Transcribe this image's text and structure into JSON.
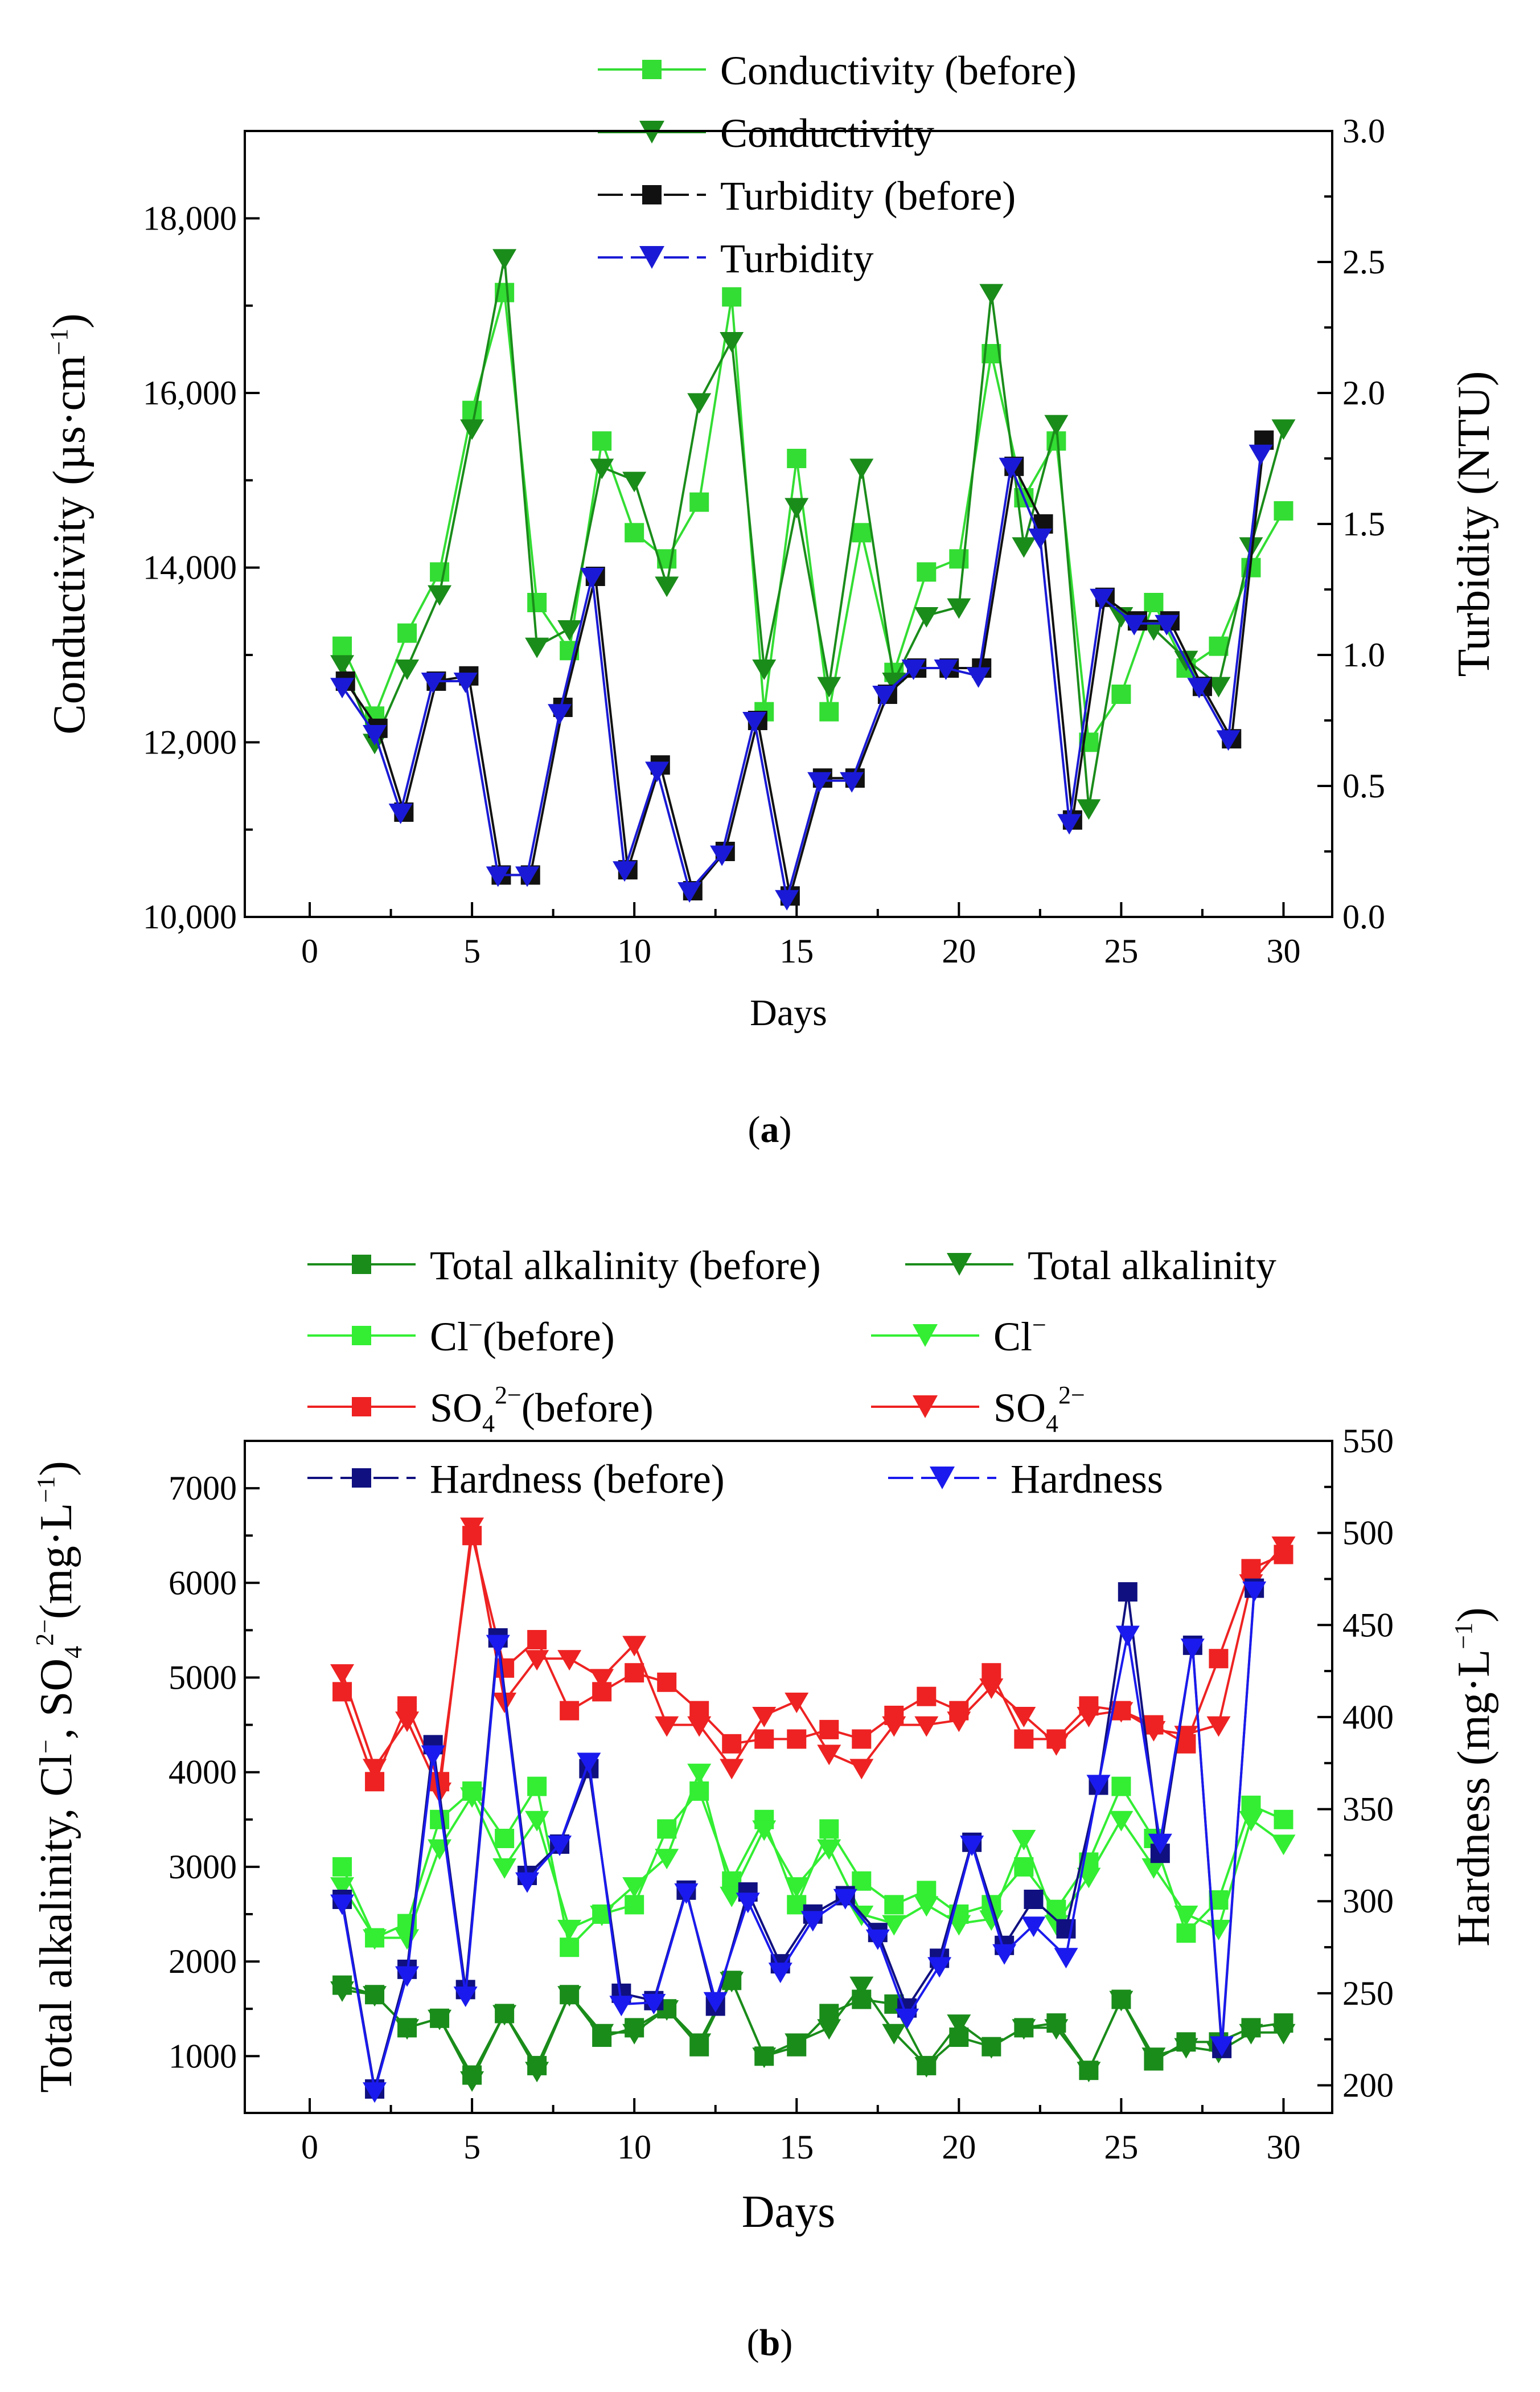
{
  "chart_data": [
    {
      "type": "line",
      "panel_label": "a",
      "xlabel": "Days",
      "xlim": [
        -2,
        31.5
      ],
      "xticks": [
        0,
        5,
        10,
        15,
        20,
        25,
        30
      ],
      "y_left": {
        "label": "Conductivity (µs·cm⁻¹)",
        "label_main": "Conductivity (µs·cm",
        "label_sup": "−1",
        "label_close": ")",
        "lim": [
          10000,
          19000
        ],
        "ticks": [
          10000,
          12000,
          14000,
          16000,
          18000
        ],
        "tick_labels": [
          "10,000",
          "12,000",
          "14,000",
          "16,000",
          "18,000"
        ]
      },
      "y_right": {
        "label": "Turbidity (NTU)",
        "lim": [
          0,
          3.0
        ],
        "ticks": [
          0,
          0.5,
          1.0,
          1.5,
          2.0,
          2.5,
          3.0
        ],
        "tick_labels": [
          "0.0",
          "0.5",
          "1.0",
          "1.5",
          "2.0",
          "2.5",
          "3.0"
        ]
      },
      "series": [
        {
          "name": "Conductivity (before)",
          "axis": "left",
          "color": "#33dd33",
          "marker": "square",
          "x": [
            1,
            2,
            3,
            4,
            5,
            6,
            7,
            8,
            9,
            10,
            11,
            12,
            13,
            14,
            15,
            16,
            17,
            18,
            19,
            20,
            21,
            22,
            23,
            24,
            25,
            26,
            27,
            28,
            29,
            30
          ],
          "values": [
            13100,
            12300,
            13250,
            13950,
            15800,
            17150,
            13600,
            13050,
            15450,
            14400,
            14100,
            14750,
            17100,
            12350,
            15250,
            12350,
            14400,
            12800,
            13950,
            14100,
            16450,
            14800,
            15450,
            12000,
            12550,
            13600,
            12850,
            13100,
            14000,
            14650
          ]
        },
        {
          "name": "Conductivity",
          "axis": "left",
          "color": "#1a8c1a",
          "marker": "triangle-down",
          "x": [
            1,
            2,
            3,
            4,
            5,
            6,
            7,
            8,
            9,
            10,
            11,
            12,
            13,
            14,
            15,
            16,
            17,
            18,
            19,
            20,
            21,
            22,
            23,
            24,
            25,
            26,
            27,
            28,
            29,
            30
          ],
          "values": [
            12900,
            12000,
            12850,
            13700,
            15600,
            17550,
            13100,
            13300,
            15150,
            15000,
            13800,
            15900,
            16600,
            12850,
            14700,
            12650,
            15150,
            12700,
            13450,
            13550,
            17150,
            14250,
            15650,
            11250,
            13450,
            13300,
            12950,
            12650,
            14250,
            15600
          ]
        },
        {
          "name": "Turbidity (before)",
          "axis": "right",
          "color": "#111111",
          "marker": "square",
          "x": [
            1.1,
            2.1,
            2.9,
            3.9,
            4.9,
            5.9,
            6.8,
            7.8,
            8.8,
            9.8,
            10.8,
            11.8,
            12.8,
            13.8,
            14.8,
            15.8,
            16.8,
            17.8,
            18.7,
            19.7,
            20.7,
            21.7,
            22.6,
            23.5,
            24.5,
            25.5,
            26.5,
            27.5,
            28.4,
            29.4
          ],
          "values": [
            0.9,
            0.72,
            0.4,
            0.9,
            0.92,
            0.16,
            0.16,
            0.8,
            1.3,
            0.18,
            0.58,
            0.1,
            0.25,
            0.75,
            0.08,
            0.53,
            0.53,
            0.85,
            0.95,
            0.95,
            0.95,
            1.72,
            1.5,
            0.37,
            1.22,
            1.13,
            1.13,
            0.88,
            0.68,
            1.82
          ]
        },
        {
          "name": "Turbidity",
          "axis": "right",
          "color": "#1a1ad6",
          "marker": "triangle-down",
          "x": [
            1.0,
            2.0,
            2.8,
            3.8,
            4.8,
            5.8,
            6.7,
            7.7,
            8.7,
            9.7,
            10.7,
            11.7,
            12.7,
            13.7,
            14.7,
            15.7,
            16.7,
            17.7,
            18.6,
            19.6,
            20.6,
            21.6,
            22.5,
            23.4,
            24.4,
            25.4,
            26.4,
            27.4,
            28.3,
            29.3
          ],
          "values": [
            0.88,
            0.7,
            0.4,
            0.9,
            0.9,
            0.16,
            0.16,
            0.78,
            1.3,
            0.18,
            0.56,
            0.1,
            0.24,
            0.75,
            0.07,
            0.52,
            0.52,
            0.85,
            0.95,
            0.95,
            0.92,
            1.72,
            1.45,
            0.36,
            1.22,
            1.12,
            1.12,
            0.88,
            0.68,
            1.77
          ]
        }
      ]
    },
    {
      "type": "line",
      "panel_label": "b",
      "xlabel": "Days",
      "xlim": [
        -2,
        31.5
      ],
      "xticks": [
        0,
        5,
        10,
        15,
        20,
        25,
        30
      ],
      "y_left": {
        "label": "Total alkalinity, Cl⁻, SO₄²⁻(mg·L⁻¹)",
        "label_a": "Total alkalinity, Cl",
        "label_b": ", SO",
        "label_c": "(mg·L",
        "label_d": ")",
        "sup_minus": "−",
        "sub_4": "4",
        "sup_2minus": "2−",
        "sup_m1": "−1",
        "lim": [
          400,
          7500
        ],
        "ticks": [
          1000,
          2000,
          3000,
          4000,
          5000,
          6000,
          7000
        ],
        "tick_labels": [
          "1000",
          "2000",
          "3000",
          "4000",
          "5000",
          "6000",
          "7000"
        ]
      },
      "y_right": {
        "label": "Hardness (mg·L⁻¹)",
        "label_a": "Hardness (mg·L",
        "label_sup": "−1",
        "label_close": ")",
        "lim": [
          185,
          550
        ],
        "ticks": [
          200,
          250,
          300,
          350,
          400,
          450,
          500,
          550
        ],
        "tick_labels": [
          "200",
          "250",
          "300",
          "350",
          "400",
          "450",
          "500",
          "550"
        ]
      },
      "series": [
        {
          "name": "Total alkalinity (before)",
          "axis": "left",
          "color": "#1a8c1a",
          "marker": "square",
          "x": [
            1,
            2,
            3,
            4,
            5,
            6,
            7,
            8,
            9,
            10,
            11,
            12,
            13,
            14,
            15,
            16,
            17,
            18,
            19,
            20,
            21,
            22,
            23,
            24,
            25,
            26,
            27,
            28,
            29,
            30
          ],
          "values": [
            1750,
            1650,
            1300,
            1400,
            800,
            1450,
            900,
            1650,
            1200,
            1300,
            1500,
            1100,
            1800,
            1000,
            1100,
            1450,
            1600,
            1550,
            900,
            1200,
            1100,
            1300,
            1350,
            850,
            1600,
            950,
            1150,
            1150,
            1300,
            1350
          ]
        },
        {
          "name": "Total alkalinity",
          "axis": "left",
          "color": "#1a8c1a",
          "marker": "triangle-down",
          "x": [
            1,
            2,
            3,
            4,
            5,
            6,
            7,
            8,
            9,
            10,
            11,
            12,
            13,
            14,
            15,
            16,
            17,
            18,
            19,
            20,
            21,
            22,
            23,
            24,
            25,
            26,
            27,
            28,
            29,
            30
          ],
          "values": [
            1700,
            1650,
            1300,
            1400,
            750,
            1450,
            850,
            1650,
            1250,
            1250,
            1500,
            1150,
            1800,
            1000,
            1150,
            1300,
            1750,
            1250,
            900,
            1350,
            1100,
            1300,
            1300,
            850,
            1600,
            1000,
            1100,
            1050,
            1250,
            1250
          ]
        },
        {
          "name": "Cl⁻(before)",
          "label_main": "Cl",
          "label_sup": "−",
          "label_tail": "(before)",
          "axis": "left",
          "color": "#33ee33",
          "marker": "square",
          "x": [
            1,
            2,
            3,
            4,
            5,
            6,
            7,
            8,
            9,
            10,
            11,
            12,
            13,
            14,
            15,
            16,
            17,
            18,
            19,
            20,
            21,
            22,
            23,
            24,
            25,
            26,
            27,
            28,
            29,
            30
          ],
          "values": [
            3000,
            2250,
            2400,
            3500,
            3800,
            3300,
            3850,
            2150,
            2500,
            2600,
            3400,
            3800,
            2850,
            3500,
            2600,
            3400,
            2850,
            2600,
            2750,
            2500,
            2600,
            3000,
            2550,
            3050,
            3850,
            3300,
            2300,
            2650,
            3650,
            3500
          ]
        },
        {
          "name": "Cl⁻",
          "label_main": "Cl",
          "label_sup": "−",
          "label_tail": "",
          "axis": "left",
          "color": "#33ee33",
          "marker": "triangle-down",
          "x": [
            1,
            2,
            3,
            4,
            5,
            6,
            7,
            8,
            9,
            10,
            11,
            12,
            13,
            14,
            15,
            16,
            17,
            18,
            19,
            20,
            21,
            22,
            23,
            24,
            25,
            26,
            27,
            28,
            29,
            30
          ],
          "values": [
            2800,
            2250,
            2250,
            3200,
            3750,
            3000,
            3500,
            2350,
            2500,
            2800,
            3100,
            4000,
            2700,
            3400,
            2800,
            3200,
            2500,
            2400,
            2600,
            2400,
            2450,
            3300,
            2400,
            2900,
            3500,
            3000,
            2500,
            2350,
            3500,
            3250
          ]
        },
        {
          "name": "SO₄²⁻(before)",
          "label_main": "SO",
          "label_sub": "4",
          "label_sup": "2−",
          "label_tail": "(before)",
          "axis": "left",
          "color": "#ee2222",
          "marker": "square",
          "x": [
            1,
            2,
            3,
            4,
            5,
            6,
            7,
            8,
            9,
            10,
            11,
            12,
            13,
            14,
            15,
            16,
            17,
            18,
            19,
            20,
            21,
            22,
            23,
            24,
            25,
            26,
            27,
            28,
            29,
            30
          ],
          "values": [
            4850,
            3900,
            4700,
            3900,
            6500,
            5100,
            5400,
            4650,
            4850,
            5050,
            4950,
            4650,
            4300,
            4350,
            4350,
            4450,
            4350,
            4600,
            4800,
            4650,
            5050,
            4350,
            4350,
            4700,
            4650,
            4500,
            4300,
            5200,
            6150,
            6300
          ]
        },
        {
          "name": "SO₄²⁻",
          "label_main": "SO",
          "label_sub": "4",
          "label_sup": "2−",
          "label_tail": "",
          "axis": "left",
          "color": "#ee2222",
          "marker": "triangle-down",
          "x": [
            1,
            2,
            3,
            4,
            5,
            6,
            7,
            8,
            9,
            10,
            11,
            12,
            13,
            14,
            15,
            16,
            17,
            18,
            19,
            20,
            21,
            22,
            23,
            24,
            25,
            26,
            27,
            28,
            29,
            30
          ],
          "values": [
            5050,
            4050,
            4550,
            3800,
            6600,
            4750,
            5200,
            5200,
            5000,
            5350,
            4500,
            4500,
            4050,
            4600,
            4750,
            4200,
            4050,
            4500,
            4500,
            4550,
            4900,
            4600,
            4300,
            4600,
            4650,
            4450,
            4400,
            4500,
            6000,
            6400
          ]
        },
        {
          "name": "Hardness (before)",
          "axis": "right",
          "color": "#101080",
          "marker": "square",
          "x": [
            1,
            2,
            3,
            3.8,
            4.8,
            5.8,
            6.7,
            7.7,
            8.6,
            9.6,
            10.6,
            11.6,
            12.5,
            13.5,
            14.5,
            15.5,
            16.5,
            17.5,
            18.4,
            19.4,
            20.4,
            21.4,
            22.3,
            23.3,
            24.3,
            25.2,
            26.2,
            27.2,
            28.1,
            29.1
          ],
          "values": [
            301,
            198,
            263,
            385,
            252,
            443,
            314,
            331,
            372,
            250,
            246,
            306,
            243,
            305,
            266,
            293,
            303,
            283,
            242,
            269,
            332,
            276,
            301,
            285,
            363,
            468,
            326,
            439,
            220,
            470
          ]
        },
        {
          "name": "Hardness",
          "axis": "right",
          "color": "#1a1aee",
          "marker": "triangle-down",
          "x": [
            1,
            2,
            3,
            3.8,
            4.8,
            5.8,
            6.7,
            7.7,
            8.6,
            9.6,
            10.6,
            11.6,
            12.5,
            13.5,
            14.5,
            15.5,
            16.5,
            17.5,
            18.4,
            19.4,
            20.4,
            21.4,
            22.3,
            23.3,
            24.3,
            25.2,
            26.2,
            27.2,
            28.1,
            29.1
          ],
          "values": [
            299,
            197,
            260,
            380,
            249,
            440,
            311,
            331,
            376,
            244,
            245,
            305,
            246,
            300,
            262,
            290,
            302,
            280,
            237,
            265,
            331,
            272,
            287,
            270,
            364,
            445,
            332,
            438,
            222,
            469
          ]
        }
      ]
    }
  ]
}
